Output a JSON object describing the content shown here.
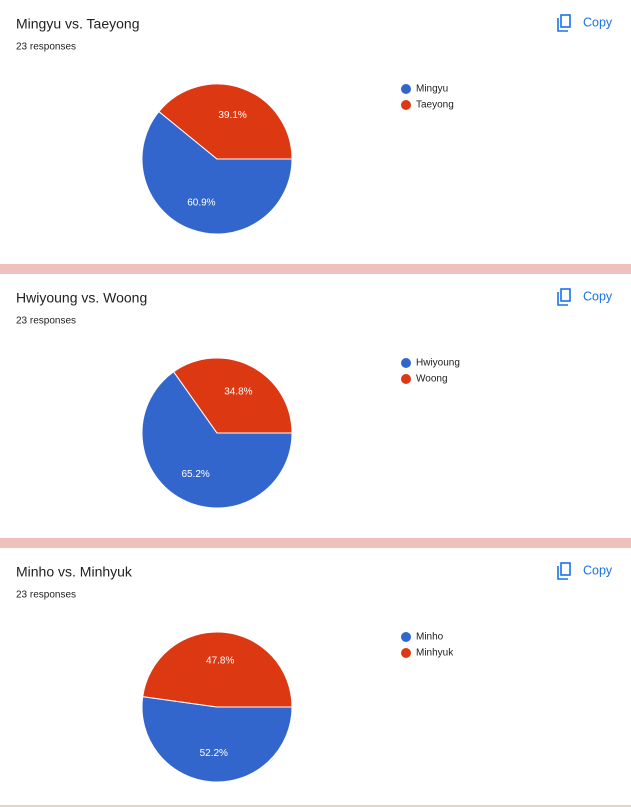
{
  "chart_data": [
    {
      "type": "pie",
      "title": "Mingyu vs. Taeyong",
      "subtitle": "23 responses",
      "action": "Copy",
      "categories": [
        "Mingyu",
        "Taeyong"
      ],
      "values": [
        60.9,
        39.1
      ],
      "value_labels": [
        "60.9%",
        "39.1%"
      ],
      "colors": [
        "#3366cc",
        "#dc3912"
      ]
    },
    {
      "type": "pie",
      "title": "Hwiyoung vs. Woong",
      "subtitle": "23 responses",
      "action": "Copy",
      "categories": [
        "Hwiyoung",
        "Woong"
      ],
      "values": [
        65.2,
        34.8
      ],
      "value_labels": [
        "65.2%",
        "34.8%"
      ],
      "colors": [
        "#3366cc",
        "#dc3912"
      ]
    },
    {
      "type": "pie",
      "title": "Minho vs. Minhyuk",
      "subtitle": "23 responses",
      "action": "Copy",
      "categories": [
        "Minho",
        "Minhyuk"
      ],
      "values": [
        52.2,
        47.8
      ],
      "value_labels": [
        "52.2%",
        "47.8%"
      ],
      "colors": [
        "#3366cc",
        "#dc3912"
      ]
    }
  ]
}
